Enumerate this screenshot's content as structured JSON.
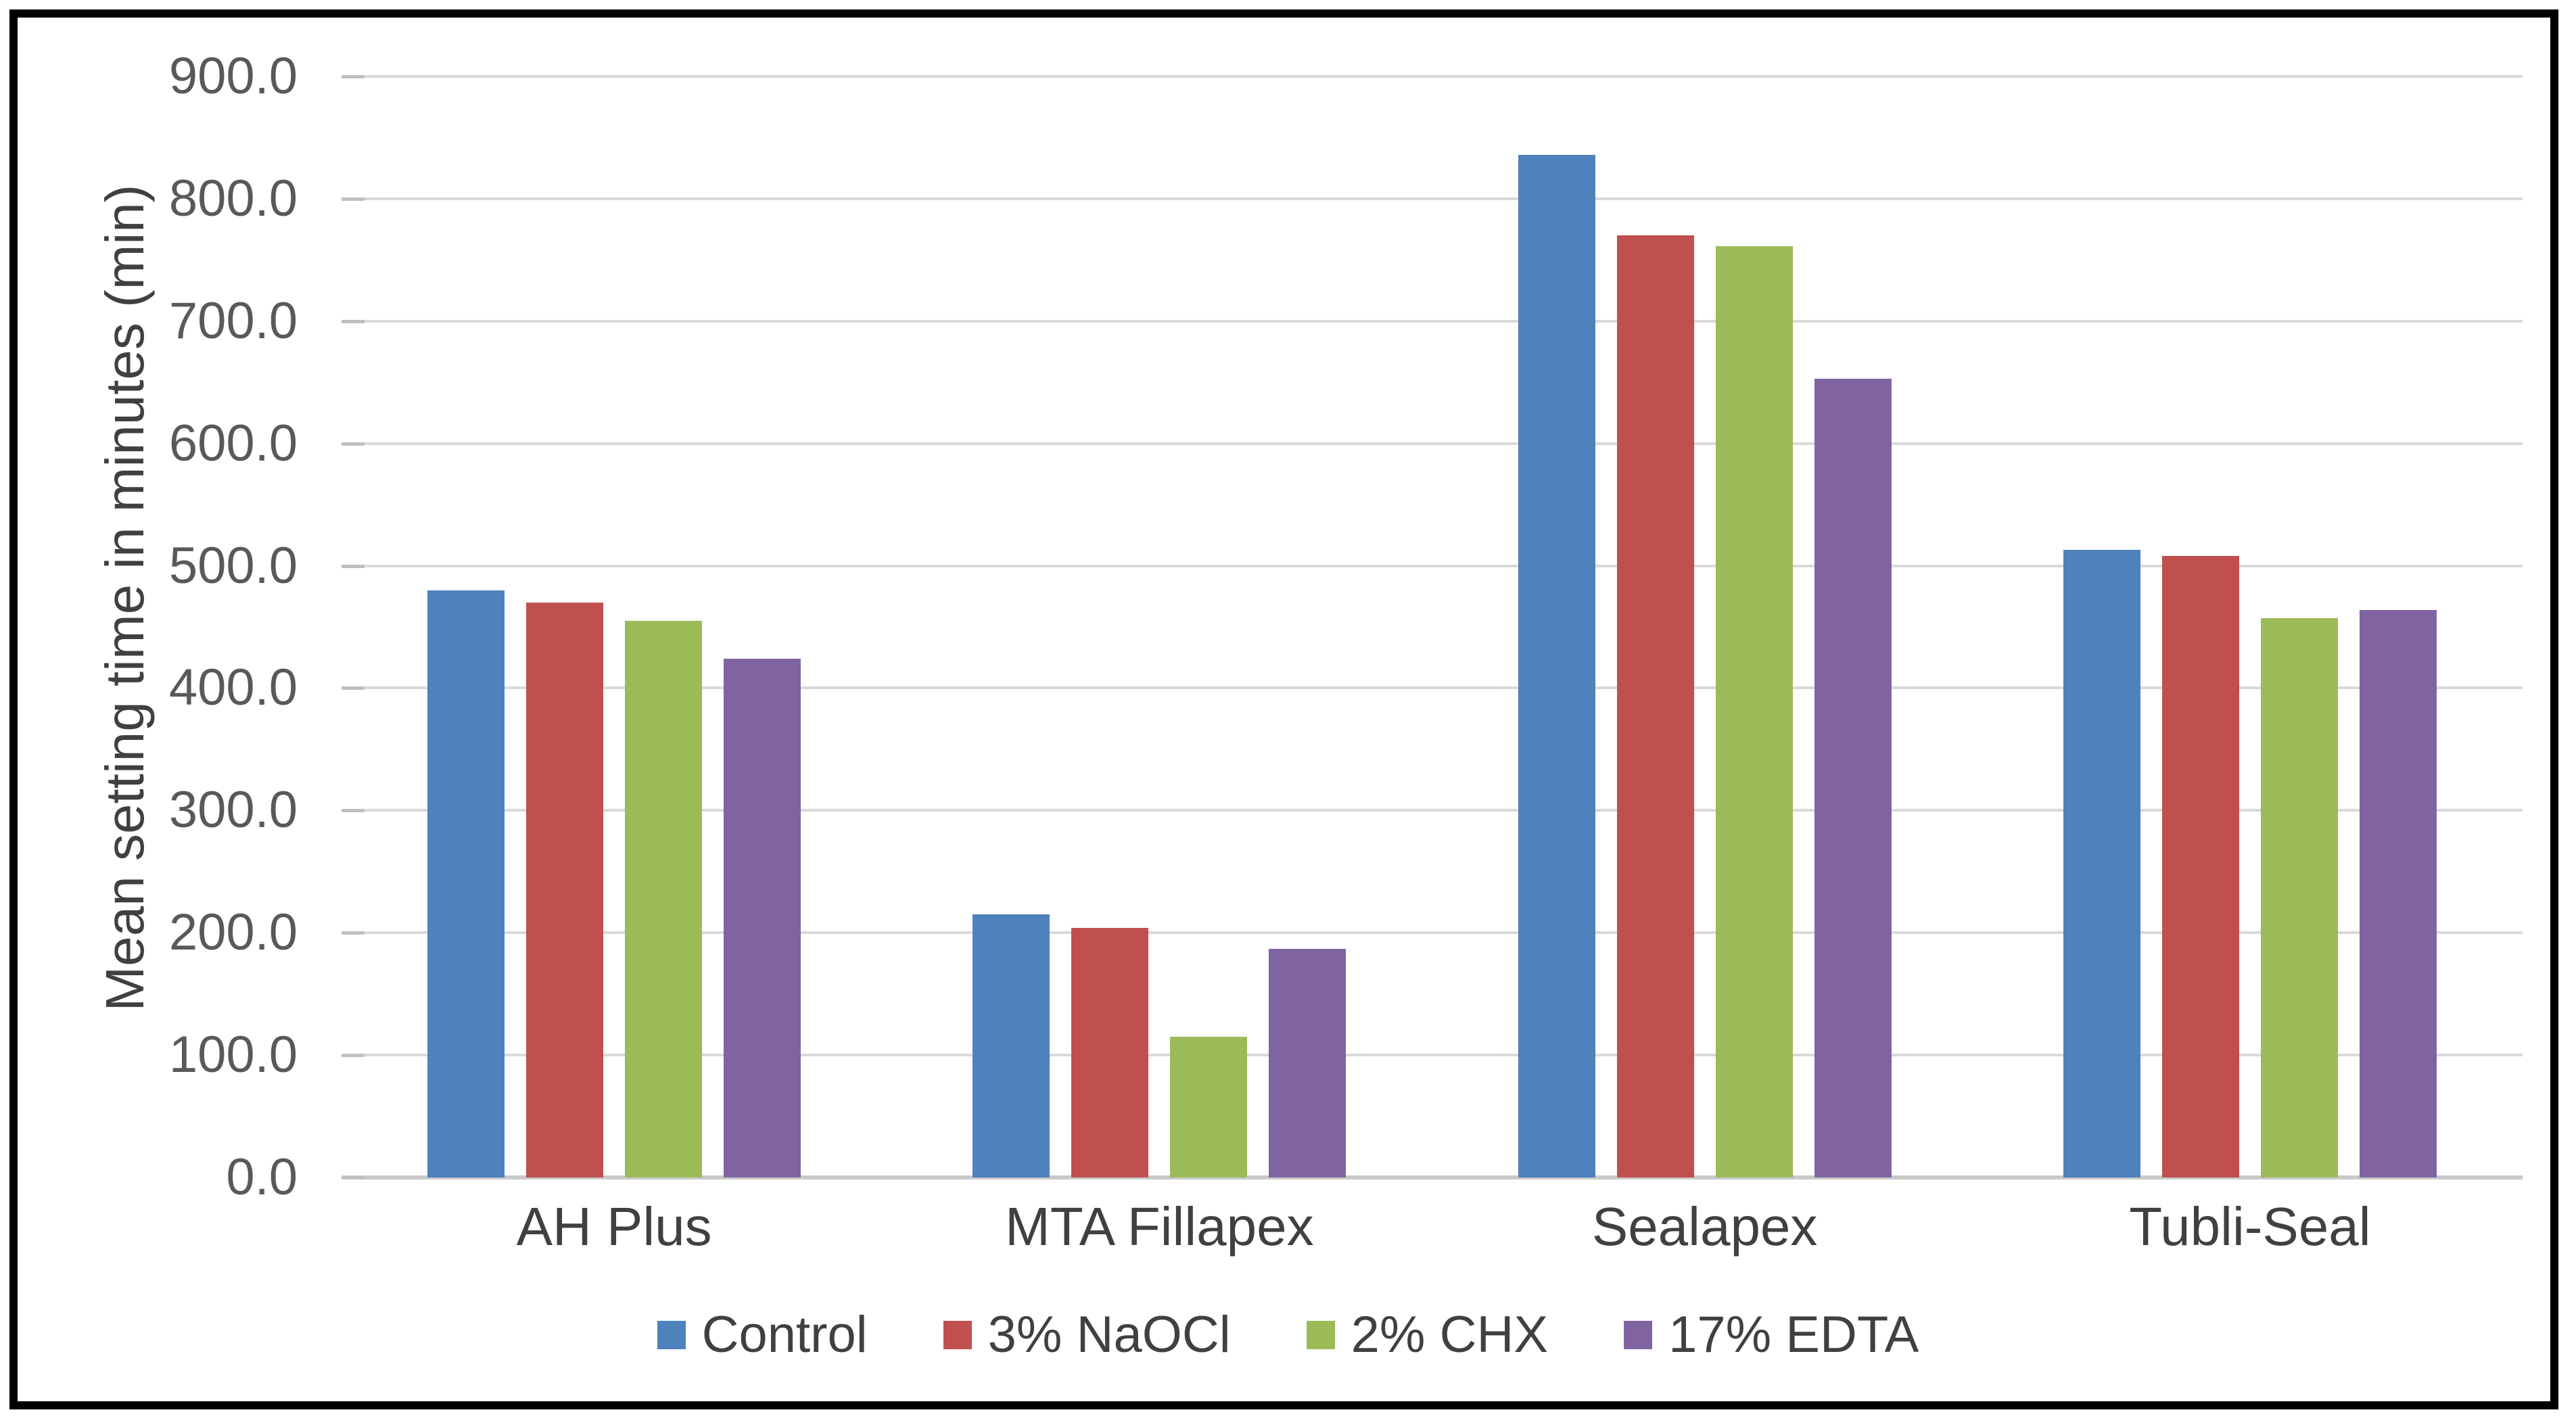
{
  "chart_data": {
    "type": "bar",
    "title": "",
    "xlabel": "",
    "ylabel": "Mean setting time in minutes (min)",
    "categories": [
      "AH Plus",
      "MTA Fillapex",
      "Sealapex",
      "Tubli-Seal"
    ],
    "series": [
      {
        "name": "Control",
        "color": "#4F81BD",
        "values": [
          480,
          215,
          836,
          513
        ]
      },
      {
        "name": "3% NaOCl",
        "color": "#C0504D",
        "values": [
          470,
          204,
          770,
          508
        ]
      },
      {
        "name": "2% CHX",
        "color": "#9BBB59",
        "values": [
          455,
          115,
          761,
          457
        ]
      },
      {
        "name": "17% EDTA",
        "color": "#8064A2",
        "values": [
          424,
          187,
          653,
          464
        ]
      }
    ],
    "ylim": [
      0,
      900
    ],
    "ytick_step": 100,
    "ytick_labels": [
      "0.0",
      "100.0",
      "200.0",
      "300.0",
      "400.0",
      "500.0",
      "600.0",
      "700.0",
      "800.0",
      "900.0"
    ],
    "grid": true,
    "legend_position": "bottom",
    "gridline_color": "#D9D9D9",
    "axis_line_color": "#C9C9C9",
    "tick_mark_color": "#BFBFBF",
    "tick_label_color": "#595959",
    "text_color": "#404040",
    "frame_color": "#000000"
  }
}
